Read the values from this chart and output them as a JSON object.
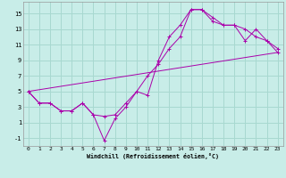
{
  "xlabel": "Windchill (Refroidissement éolien,°C)",
  "bg_color": "#c8ede8",
  "grid_color": "#a8d8d0",
  "line_color": "#aa00aa",
  "xlim": [
    -0.5,
    23.5
  ],
  "ylim": [
    -2,
    16.5
  ],
  "xticks": [
    0,
    1,
    2,
    3,
    4,
    5,
    6,
    7,
    8,
    9,
    10,
    11,
    12,
    13,
    14,
    15,
    16,
    17,
    18,
    19,
    20,
    21,
    22,
    23
  ],
  "yticks": [
    -1,
    1,
    3,
    5,
    7,
    9,
    11,
    13,
    15
  ],
  "line1_x": [
    0,
    1,
    2,
    3,
    4,
    5,
    6,
    7,
    8,
    9,
    10,
    11,
    12,
    13,
    14,
    15,
    16,
    17,
    18,
    19,
    20,
    21,
    22,
    23
  ],
  "line1_y": [
    5,
    3.5,
    3.5,
    2.5,
    2.5,
    3.5,
    2.0,
    -1.3,
    1.5,
    3.0,
    5.0,
    4.5,
    9.0,
    12.0,
    13.5,
    15.5,
    15.5,
    14.5,
    13.5,
    13.5,
    13.0,
    12.0,
    11.5,
    10.5
  ],
  "line2_x": [
    0,
    1,
    2,
    3,
    4,
    5,
    6,
    7,
    8,
    9,
    10,
    11,
    12,
    13,
    14,
    15,
    16,
    17,
    18,
    19,
    20,
    21,
    22,
    23
  ],
  "line2_y": [
    5,
    3.5,
    3.5,
    2.5,
    2.5,
    3.5,
    2.0,
    1.8,
    2.0,
    3.5,
    5.0,
    7.0,
    8.5,
    10.5,
    12.0,
    15.5,
    15.5,
    14.0,
    13.5,
    13.5,
    11.5,
    13.0,
    11.5,
    10.0
  ],
  "line3_x": [
    0,
    23
  ],
  "line3_y": [
    5,
    10.0
  ]
}
